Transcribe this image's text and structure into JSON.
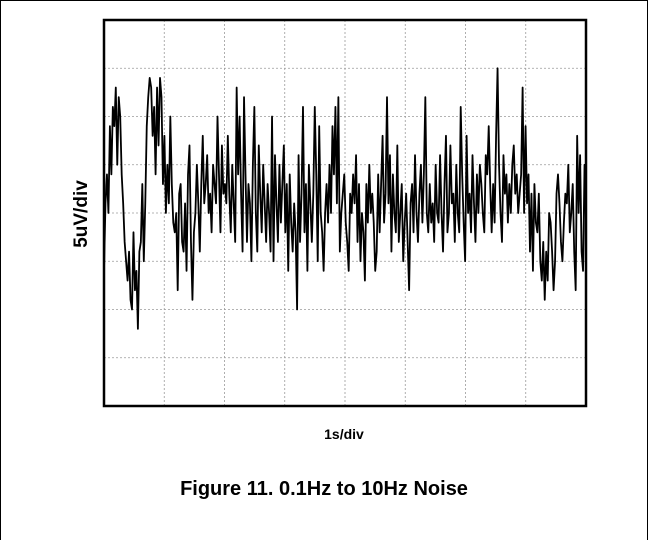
{
  "chart_data": {
    "type": "line",
    "title": "Figure 11. 0.1Hz to 10Hz Noise",
    "xlabel": "1s/div",
    "ylabel": "5uV/div",
    "xlim": [
      0,
      10
    ],
    "ylim": [
      -20,
      20
    ],
    "grid": true,
    "x_divisions": 8,
    "y_divisions": 8,
    "series": [
      {
        "values": [
          -6,
          1,
          4,
          0,
          9,
          4,
          11,
          9,
          13,
          5,
          12,
          10,
          4,
          1,
          -3,
          -5,
          -7,
          -4,
          -9,
          -10,
          -2,
          -8,
          -6,
          -12,
          -4,
          -3,
          3,
          -5,
          1,
          9,
          12,
          14,
          13,
          8,
          11,
          4,
          13,
          7,
          14,
          12,
          3,
          8,
          0,
          5,
          1,
          10,
          3,
          -1,
          -2,
          0,
          -8,
          2,
          3,
          -3,
          -4,
          1,
          -6,
          4,
          7,
          -3,
          -9,
          -2,
          0,
          5,
          1,
          -4,
          3,
          8,
          1,
          3,
          6,
          0,
          2,
          -2,
          5,
          3,
          1,
          10,
          4,
          -2,
          7,
          2,
          3,
          1,
          8,
          2,
          -2,
          5,
          1,
          -3,
          13,
          4,
          10,
          2,
          -4,
          12,
          4,
          -3,
          3,
          1,
          -5,
          5,
          11,
          0,
          -4,
          7,
          2,
          -2,
          5,
          1,
          -3,
          3,
          0,
          -4,
          10,
          -5,
          6,
          1,
          -3,
          5,
          -1,
          3,
          7,
          -2,
          3,
          -6,
          4,
          -1,
          -4,
          1,
          -2,
          -10,
          6,
          -3,
          2,
          11,
          -2,
          3,
          -6,
          5,
          1,
          -3,
          2,
          11,
          4,
          -5,
          9,
          0,
          -2,
          -6,
          0,
          3,
          -1,
          5,
          0,
          9,
          4,
          11,
          1,
          12,
          -4,
          0,
          2,
          4,
          -1,
          -3,
          -6,
          2,
          0,
          4,
          1,
          6,
          -3,
          3,
          -5,
          0,
          -2,
          -7,
          3,
          -1,
          5,
          0,
          2,
          -1,
          -6,
          -4,
          4,
          -2,
          3,
          8,
          -1,
          2,
          12,
          1,
          6,
          -4,
          4,
          0,
          -2,
          7,
          -3,
          0,
          3,
          -5,
          -1,
          2,
          -3,
          -8,
          1,
          3,
          -2,
          6,
          0,
          -3,
          2,
          5,
          -1,
          4,
          12,
          0,
          -2,
          3,
          -1,
          1,
          -3,
          5,
          0,
          -1,
          6,
          0,
          -4,
          3,
          8,
          -2,
          0,
          7,
          1,
          2,
          -3,
          5,
          0,
          -2,
          11,
          4,
          -1,
          -5,
          8,
          0,
          2,
          -2,
          6,
          1,
          -3,
          4,
          0,
          5,
          3,
          0,
          -2,
          6,
          4,
          9,
          3,
          -2,
          3,
          -1,
          8,
          15,
          5,
          0,
          -3,
          6,
          2,
          4,
          -1,
          3,
          0,
          5,
          7,
          2,
          4,
          0,
          2,
          4,
          13,
          0,
          9,
          1,
          4,
          -4,
          2,
          -6,
          3,
          -1,
          -2,
          2,
          -5,
          -7,
          -3,
          -9,
          -4,
          -7,
          0,
          -1,
          -4,
          -8,
          -5,
          2,
          4,
          1,
          -3,
          -5,
          -1,
          2,
          1,
          5,
          -2,
          0,
          3,
          -4,
          -8,
          8,
          0,
          6,
          -4,
          -6,
          5,
          -1
        ]
      }
    ]
  }
}
